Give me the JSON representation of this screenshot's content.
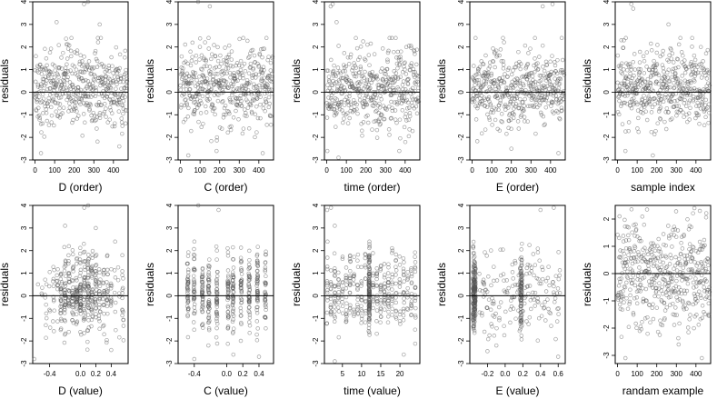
{
  "chart_data": [
    {
      "type": "scatter",
      "xlabel": "D (order)",
      "ylabel": "residuals",
      "xlim": [
        -12,
        475
      ],
      "ylim": [
        -3,
        4
      ],
      "xticks": [
        0,
        100,
        200,
        300,
        400
      ],
      "yticks": [
        -3,
        -2,
        -1,
        0,
        1,
        2,
        3,
        4
      ],
      "hline": 0,
      "n_points": 470,
      "outliers": [
        [
          250,
          3.9
        ],
        [
          270,
          4.0
        ],
        [
          110,
          3.1
        ],
        [
          330,
          3.0
        ],
        [
          30,
          -2.7
        ],
        [
          430,
          -2.4
        ]
      ]
    },
    {
      "type": "scatter",
      "xlabel": "C (order)",
      "ylabel": "residuals",
      "xlim": [
        -12,
        475
      ],
      "ylim": [
        -3,
        4
      ],
      "xticks": [
        0,
        100,
        200,
        300,
        400
      ],
      "yticks": [
        -3,
        -2,
        -1,
        0,
        1,
        2,
        3,
        4
      ],
      "hline": 0,
      "n_points": 470,
      "outliers": [
        [
          90,
          4.0
        ],
        [
          150,
          3.8
        ],
        [
          40,
          -2.8
        ],
        [
          420,
          -2.7
        ]
      ]
    },
    {
      "type": "scatter",
      "xlabel": "time (order)",
      "ylabel": "residuals",
      "xlim": [
        -12,
        475
      ],
      "ylim": [
        -3,
        4
      ],
      "xticks": [
        0,
        100,
        200,
        300,
        400
      ],
      "yticks": [
        -3,
        -2,
        -1,
        0,
        1,
        2,
        3,
        4
      ],
      "hline": 0,
      "n_points": 470,
      "outliers": [
        [
          30,
          3.9
        ],
        [
          20,
          3.8
        ],
        [
          50,
          3.1
        ],
        [
          60,
          -2.9
        ],
        [
          370,
          -2.6
        ]
      ]
    },
    {
      "type": "scatter",
      "xlabel": "E (order)",
      "ylabel": "residuals",
      "xlim": [
        -12,
        475
      ],
      "ylim": [
        -3,
        4
      ],
      "xticks": [
        0,
        100,
        200,
        300,
        400
      ],
      "yticks": [
        -3,
        -2,
        -1,
        0,
        1,
        2,
        3,
        4
      ],
      "hline": 0,
      "n_points": 470,
      "outliers": [
        [
          360,
          3.8
        ],
        [
          410,
          3.9
        ],
        [
          440,
          -2.7
        ],
        [
          200,
          -2.5
        ]
      ]
    },
    {
      "type": "scatter",
      "xlabel": "sample index",
      "ylabel": "residuals",
      "xlim": [
        -12,
        475
      ],
      "ylim": [
        -3,
        4
      ],
      "xticks": [
        0,
        100,
        200,
        300,
        400
      ],
      "yticks": [
        -3,
        -2,
        -1,
        0,
        1,
        2,
        3,
        4
      ],
      "hline": 0,
      "n_points": 470,
      "outliers": [
        [
          70,
          3.9
        ],
        [
          80,
          3.7
        ],
        [
          260,
          3.0
        ],
        [
          40,
          -2.6
        ],
        [
          180,
          -2.8
        ]
      ]
    },
    {
      "type": "scatter",
      "xlabel": "D (value)",
      "ylabel": "residuals",
      "xlim": [
        -0.62,
        0.62
      ],
      "ylim": [
        -3,
        4
      ],
      "xticks": [
        -0.4,
        0.0,
        0.2,
        0.4
      ],
      "xticklabels": [
        "-0.4",
        "0.0",
        "0.2",
        "0.4"
      ],
      "yticks": [
        -3,
        -2,
        -1,
        0,
        1,
        2,
        3,
        4
      ],
      "hline": 0,
      "n_points": 470,
      "outliers": [
        [
          0.05,
          3.9
        ],
        [
          0.1,
          4.0
        ],
        [
          -0.2,
          3.1
        ],
        [
          0.2,
          3.0
        ],
        [
          -0.6,
          -2.8
        ],
        [
          0.4,
          -2.4
        ]
      ]
    },
    {
      "type": "scatter",
      "xlabel": "C (value)",
      "ylabel": "residuals",
      "xlim": [
        -0.6,
        0.58
      ],
      "ylim": [
        -3,
        4
      ],
      "xticks": [
        -0.4,
        0.0,
        0.2,
        0.4
      ],
      "xticklabels": [
        "-0.4",
        "0.0",
        "0.2",
        "0.4"
      ],
      "yticks": [
        -3,
        -2,
        -1,
        0,
        1,
        2,
        3,
        4
      ],
      "hline": 0,
      "n_points": 470,
      "outliers": [
        [
          -0.35,
          4.0
        ],
        [
          -0.1,
          3.8
        ],
        [
          -0.4,
          -2.8
        ],
        [
          0.4,
          -2.7
        ]
      ]
    },
    {
      "type": "scatter",
      "xlabel": "time (value)",
      "ylabel": "residuals",
      "xlim": [
        0.3,
        25.2
      ],
      "ylim": [
        -3,
        4
      ],
      "xticks": [
        5,
        10,
        15,
        20
      ],
      "yticks": [
        -3,
        -2,
        -1,
        0,
        1,
        2,
        3,
        4
      ],
      "hline": 0,
      "n_points": 470,
      "outliers": [
        [
          2,
          3.9
        ],
        [
          1,
          3.8
        ],
        [
          3,
          3.1
        ],
        [
          3,
          -2.9
        ],
        [
          21,
          -2.6
        ]
      ]
    },
    {
      "type": "scatter",
      "xlabel": "E (value)",
      "ylabel": "residuals",
      "xlim": [
        -0.4,
        0.68
      ],
      "ylim": [
        -3,
        4
      ],
      "xticks": [
        -0.2,
        0.0,
        0.2,
        0.4,
        0.6
      ],
      "xticklabels": [
        "-0.2",
        "0.0",
        "0.2",
        "0.4",
        "0.6"
      ],
      "yticks": [
        -3,
        -2,
        -1,
        0,
        1,
        2,
        3,
        4
      ],
      "hline": 0,
      "n_points": 470,
      "outliers": [
        [
          0.4,
          3.8
        ],
        [
          0.55,
          3.9
        ],
        [
          0.6,
          -2.7
        ],
        [
          -0.1,
          -2.2
        ]
      ]
    },
    {
      "type": "scatter",
      "xlabel": "randam example",
      "ylabel": "residuals",
      "xlim": [
        -12,
        475
      ],
      "ylim": [
        -3.3,
        2.5
      ],
      "xticks": [
        0,
        100,
        200,
        300,
        400
      ],
      "yticks": [
        -3,
        -2,
        -1,
        0,
        1,
        2
      ],
      "hline": 0,
      "n_points": 470,
      "outliers": [
        [
          40,
          -3.1
        ],
        [
          430,
          -3.1
        ],
        [
          10,
          2.1
        ],
        [
          420,
          2.3
        ]
      ]
    }
  ]
}
